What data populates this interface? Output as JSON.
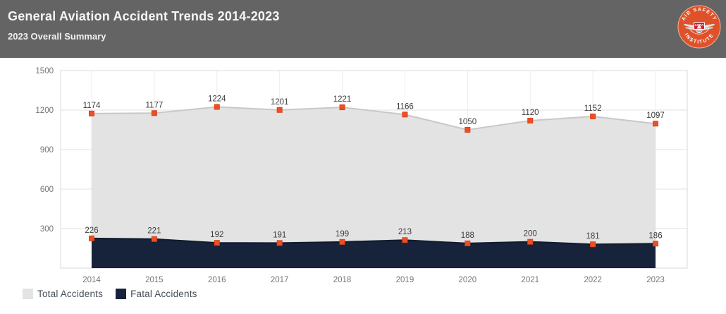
{
  "header": {
    "title": "General Aviation Accident Trends 2014-2023",
    "subtitle": "2023 Overall Summary"
  },
  "logo": {
    "top_text": "AIR SAFETY",
    "bottom_text": "INSTITUTE",
    "center_text": "AOPA"
  },
  "colors": {
    "header_bg": "#646464",
    "total_fill": "#e3e3e3",
    "total_stroke": "#c8c8c8",
    "fatal_fill": "#16233a",
    "fatal_stroke": "#101c2c",
    "marker": "#f04e23",
    "marker_border": "#d8431e",
    "grid_h": "#e2e2e2",
    "grid_v": "#ededed",
    "plot_border": "#d9d9d9",
    "axis_text": "#757575",
    "data_label_text": "#3c3c3c",
    "logo_orange": "#e0512a",
    "logo_red": "#ce2026"
  },
  "chart_data": {
    "type": "area",
    "title": "General Aviation Accident Trends 2014-2023",
    "categories": [
      "2014",
      "2015",
      "2016",
      "2017",
      "2018",
      "2019",
      "2020",
      "2021",
      "2022",
      "2023"
    ],
    "series": [
      {
        "name": "Total Accidents",
        "values": [
          1174,
          1177,
          1224,
          1201,
          1221,
          1166,
          1050,
          1120,
          1152,
          1097
        ]
      },
      {
        "name": "Fatal Accidents",
        "values": [
          226,
          221,
          192,
          191,
          199,
          213,
          188,
          200,
          181,
          186
        ]
      }
    ],
    "xlabel": "",
    "ylabel": "",
    "ylim": [
      0,
      1500
    ],
    "yticks": [
      300,
      600,
      900,
      1200,
      1500
    ],
    "grid": true,
    "data_labels": true,
    "legend_position": "bottom-left"
  }
}
